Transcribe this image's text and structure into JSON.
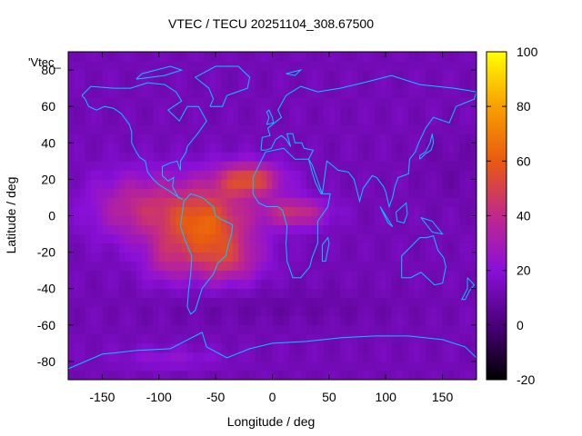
{
  "chart_data": {
    "type": "heatmap",
    "title": "VTEC / TECU 20251104_308.67500",
    "xlabel": "Longitude / deg",
    "ylabel": "Latitude / deg",
    "series_key": "'Vtec_",
    "xlim": [
      -180,
      180
    ],
    "ylim": [
      -90,
      90
    ],
    "x_ticks": [
      -150,
      -100,
      -50,
      0,
      50,
      100,
      150
    ],
    "y_ticks": [
      -80,
      -60,
      -40,
      -20,
      0,
      20,
      40,
      60,
      80
    ],
    "colorbar": {
      "range": [
        -20,
        100
      ],
      "ticks": [
        -20,
        0,
        20,
        40,
        60,
        80,
        100
      ]
    },
    "grid_step_deg": 5,
    "background_tecu": 13,
    "anomaly_blobs": [
      {
        "lon": -60,
        "lat": -5,
        "slon": 40,
        "slat": 22,
        "amp": 48
      },
      {
        "lon": -120,
        "lat": 5,
        "slon": 40,
        "slat": 18,
        "amp": 24
      },
      {
        "lon": -20,
        "lat": 20,
        "slon": 28,
        "slat": 9,
        "amp": 40
      },
      {
        "lon": 20,
        "lat": 2,
        "slon": 28,
        "slat": 8,
        "amp": 30
      },
      {
        "lon": -40,
        "lat": -25,
        "slon": 30,
        "slat": 12,
        "amp": 20
      },
      {
        "lon": -95,
        "lat": -25,
        "slon": 18,
        "slat": 12,
        "amp": 14
      },
      {
        "lon": 0,
        "lat": -50,
        "slon": 120,
        "slat": 10,
        "amp": -4
      },
      {
        "lon": -90,
        "lat": -78,
        "slon": 45,
        "slat": 6,
        "amp": 9
      },
      {
        "lon": 160,
        "lat": 25,
        "slon": 30,
        "slat": 20,
        "amp": -3
      }
    ],
    "colors": {
      "colorbar_stops": [
        "#000000",
        "#4a007a",
        "#8a10d8",
        "#c0288a",
        "#e85a10",
        "#f8a000",
        "#ffff00"
      ],
      "coastline": "#00c8ff"
    }
  }
}
